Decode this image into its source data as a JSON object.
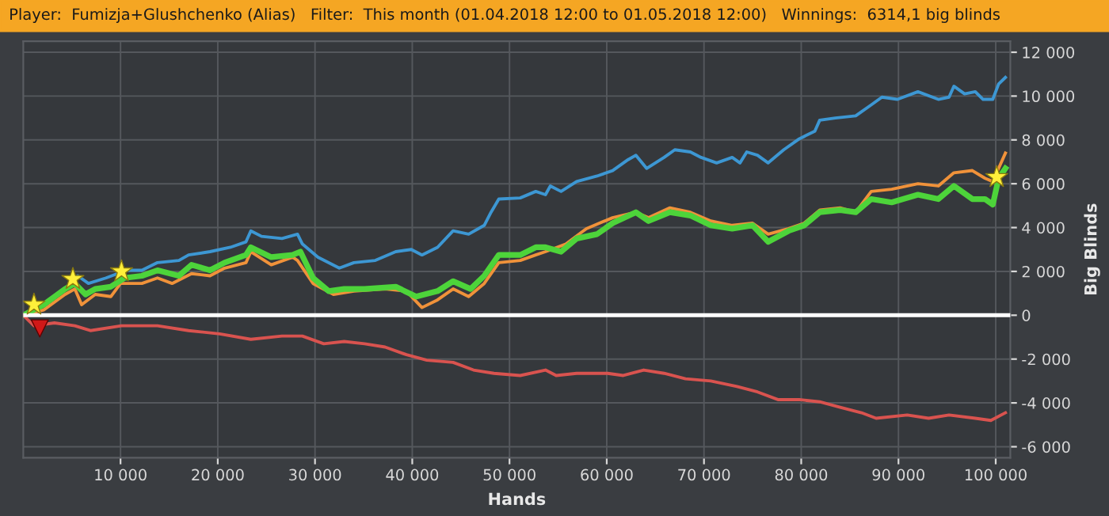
{
  "chart_data": {
    "type": "line",
    "title": "Player:  Fumizja+Glushchenko (Alias)   Filter:  This month (01.04.2018 12:00 to 01.05.2018 12:00)   Winnings:  6314,1 big blinds",
    "xlabel": "Hands",
    "ylabel": "Big Blinds",
    "xlim": [
      0,
      101500
    ],
    "ylim": [
      -6500,
      12500
    ],
    "xticks": [
      {
        "value": 10000,
        "label": "10 000"
      },
      {
        "value": 20000,
        "label": "20 000"
      },
      {
        "value": 30000,
        "label": "30 000"
      },
      {
        "value": 40000,
        "label": "40 000"
      },
      {
        "value": 50000,
        "label": "50 000"
      },
      {
        "value": 60000,
        "label": "60 000"
      },
      {
        "value": 70000,
        "label": "70 000"
      },
      {
        "value": 80000,
        "label": "80 000"
      },
      {
        "value": 90000,
        "label": "90 000"
      },
      {
        "value": 100000,
        "label": "100 000"
      }
    ],
    "yticks": [
      {
        "value": -6000,
        "label": "-6 000"
      },
      {
        "value": -4000,
        "label": "-4 000"
      },
      {
        "value": -2000,
        "label": "-2 000"
      },
      0,
      {
        "value": 2000,
        "label": "2 000"
      },
      {
        "value": 4000,
        "label": "4 000"
      },
      {
        "value": 6000,
        "label": "6 000"
      },
      {
        "value": 8000,
        "label": "8 000"
      },
      {
        "value": 10000,
        "label": "10 000"
      },
      {
        "value": 12000,
        "label": "12 000"
      }
    ],
    "grid": true,
    "legend": false,
    "marker": "none",
    "line_style": "solid",
    "ref_lines": [
      {
        "axis": "y",
        "value": 0,
        "color": "#ffffff"
      }
    ],
    "series": [
      {
        "color": "#3d97d3",
        "x": [
          4300,
          5600,
          6700,
          8500,
          10600,
          12200,
          13800,
          16000,
          17000,
          19200,
          21300,
          22900,
          23400,
          24500,
          26600,
          28200,
          28700,
          30300,
          32500,
          34000,
          36200,
          38300,
          39900,
          41000,
          42600,
          44200,
          45800,
          47400,
          48100,
          48900,
          51100,
          52700,
          53700,
          54200,
          55300,
          56900,
          59000,
          60600,
          62200,
          63000,
          64100,
          65900,
          67000,
          68600,
          69700,
          71300,
          72900,
          73700,
          74400,
          75500,
          76600,
          78200,
          79800,
          81400,
          81900,
          83500,
          85600,
          87200,
          88300,
          89900,
          92000,
          94100,
          95200,
          95700,
          96800,
          97900,
          98700,
          99700,
          100300,
          101000
        ],
        "values": [
          1200,
          1800,
          1450,
          1700,
          2050,
          2050,
          2400,
          2500,
          2750,
          2900,
          3100,
          3350,
          3850,
          3600,
          3500,
          3700,
          3250,
          2650,
          2150,
          2400,
          2500,
          2900,
          3000,
          2750,
          3100,
          3850,
          3700,
          4100,
          4700,
          5300,
          5350,
          5650,
          5500,
          5900,
          5650,
          6100,
          6350,
          6600,
          7100,
          7300,
          6700,
          7200,
          7550,
          7450,
          7200,
          6950,
          7200,
          6950,
          7450,
          7300,
          6950,
          7550,
          8050,
          8400,
          8900,
          9000,
          9100,
          9600,
          9950,
          9850,
          10200,
          9850,
          9950,
          10450,
          10100,
          10200,
          9850,
          9850,
          10550,
          10850
        ]
      },
      {
        "color": "#f0923a",
        "x": [
          0,
          2100,
          4300,
          5300,
          6000,
          7400,
          9000,
          10000,
          12200,
          13800,
          15300,
          17300,
          19200,
          20700,
          22900,
          23400,
          25500,
          27700,
          28200,
          29800,
          31900,
          34000,
          37200,
          39400,
          41000,
          42600,
          44200,
          45800,
          47400,
          48900,
          51100,
          52700,
          53700,
          55800,
          57900,
          60600,
          63000,
          64300,
          66500,
          68600,
          70700,
          72900,
          75000,
          76600,
          78700,
          80300,
          81900,
          84000,
          85600,
          87200,
          89300,
          92000,
          94100,
          95700,
          97600,
          98900,
          99700,
          100300,
          101000
        ],
        "values": [
          0,
          240,
          950,
          1200,
          480,
          950,
          850,
          1450,
          1450,
          1700,
          1450,
          1900,
          1800,
          2150,
          2400,
          2900,
          2300,
          2650,
          2500,
          1450,
          950,
          1100,
          1200,
          1100,
          350,
          700,
          1200,
          850,
          1450,
          2400,
          2500,
          2750,
          2900,
          3250,
          3950,
          4450,
          4700,
          4450,
          4900,
          4700,
          4300,
          4100,
          4200,
          3700,
          3950,
          4200,
          4800,
          4900,
          4700,
          5650,
          5750,
          6000,
          5900,
          6500,
          6600,
          6250,
          6100,
          6700,
          7400
        ]
      },
      {
        "color": "#4dd43a",
        "x": [
          0,
          2100,
          4300,
          5300,
          6400,
          7400,
          9000,
          10400,
          12200,
          13800,
          16000,
          17300,
          19200,
          20700,
          22900,
          23400,
          25500,
          27700,
          28500,
          29800,
          31400,
          33000,
          35100,
          38300,
          40400,
          42600,
          44200,
          46000,
          47400,
          48900,
          51100,
          52700,
          53700,
          55300,
          56900,
          59000,
          60600,
          63000,
          64300,
          66500,
          68600,
          70700,
          72900,
          75000,
          76600,
          78700,
          80300,
          81900,
          84000,
          85600,
          87200,
          89300,
          92000,
          94100,
          95700,
          97600,
          98900,
          99700,
          100300,
          101000
        ],
        "values": [
          0,
          480,
          1200,
          1450,
          950,
          1200,
          1300,
          1700,
          1800,
          2050,
          1800,
          2300,
          2050,
          2400,
          2750,
          3100,
          2650,
          2750,
          2900,
          1700,
          1100,
          1200,
          1200,
          1300,
          850,
          1100,
          1550,
          1200,
          1800,
          2750,
          2750,
          3100,
          3100,
          2900,
          3500,
          3700,
          4200,
          4700,
          4300,
          4700,
          4550,
          4100,
          3950,
          4100,
          3350,
          3850,
          4100,
          4700,
          4800,
          4700,
          5300,
          5150,
          5500,
          5300,
          5900,
          5300,
          5300,
          5050,
          6250,
          6700
        ]
      },
      {
        "color": "#d9534f",
        "x": [
          0,
          1100,
          3200,
          5300,
          6900,
          10100,
          13800,
          17000,
          20200,
          23400,
          26600,
          28700,
          30900,
          33000,
          35100,
          37200,
          39400,
          41500,
          44200,
          46300,
          48400,
          51100,
          53700,
          54800,
          56900,
          60100,
          61700,
          63800,
          65900,
          68100,
          70700,
          73400,
          75500,
          77600,
          79800,
          81900,
          84000,
          86200,
          87700,
          90900,
          93100,
          95200,
          97900,
          99500,
          101000
        ],
        "values": [
          0,
          -480,
          -350,
          -480,
          -700,
          -480,
          -480,
          -700,
          -850,
          -1100,
          -950,
          -950,
          -1300,
          -1200,
          -1300,
          -1450,
          -1800,
          -2050,
          -2150,
          -2500,
          -2650,
          -2750,
          -2500,
          -2750,
          -2650,
          -2650,
          -2750,
          -2500,
          -2650,
          -2900,
          -3000,
          -3250,
          -3500,
          -3850,
          -3850,
          -3950,
          -4200,
          -4450,
          -4700,
          -4550,
          -4700,
          -4550,
          -4700,
          -4800,
          -4450
        ]
      },
      {
        "type": "scatter",
        "marker": "star",
        "color": "#ffef3a",
        "x": [
          1100,
          5100,
          10100,
          100100
        ],
        "values": [
          480,
          1650,
          2000,
          6300
        ]
      },
      {
        "type": "scatter",
        "marker": "triangle",
        "color": "#d01818",
        "x": [
          1700
        ],
        "values": [
          -600
        ]
      }
    ]
  }
}
